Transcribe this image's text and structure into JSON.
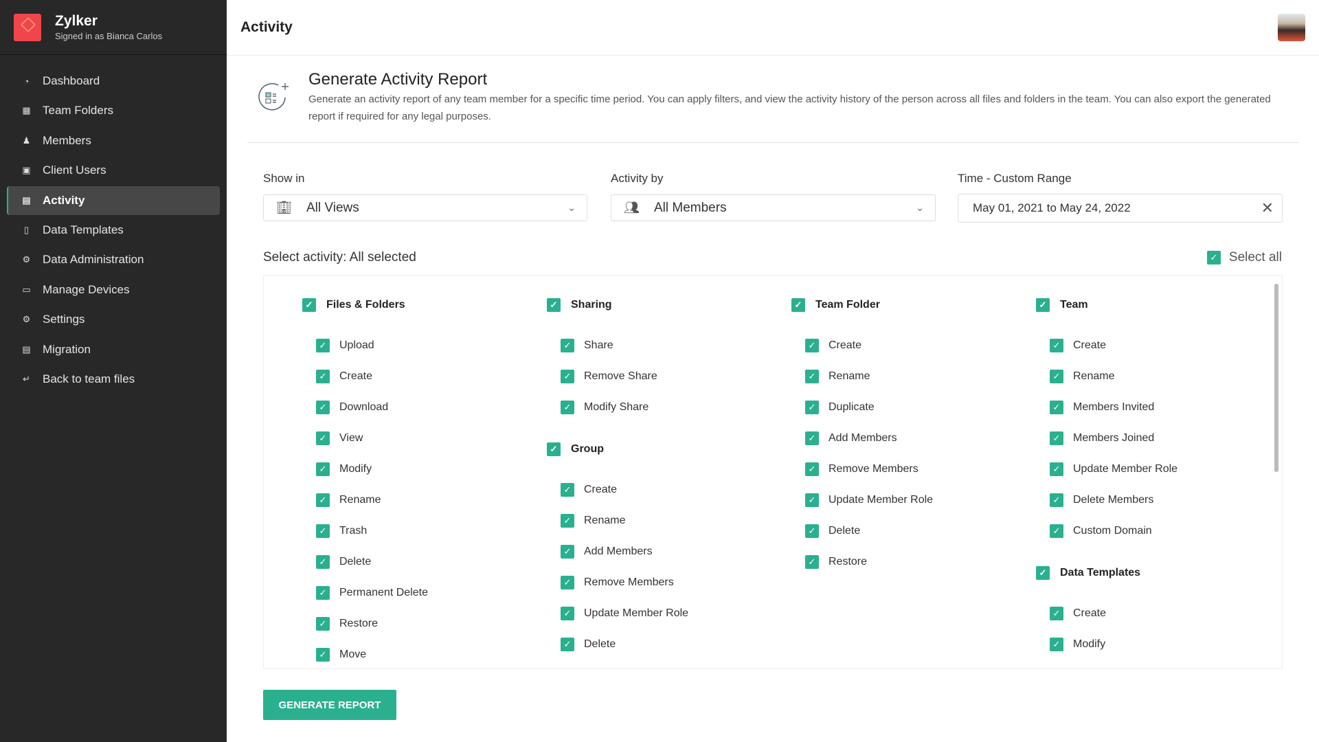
{
  "brand": {
    "name": "Zylker",
    "signed_in": "Signed in as Bianca Carlos"
  },
  "sidebar": {
    "items": [
      {
        "label": "Dashboard",
        "icon": "gauge-icon"
      },
      {
        "label": "Team Folders",
        "icon": "team-folder-icon"
      },
      {
        "label": "Members",
        "icon": "members-icon"
      },
      {
        "label": "Client Users",
        "icon": "client-user-icon"
      },
      {
        "label": "Activity",
        "icon": "activity-chart-icon",
        "active": true
      },
      {
        "label": "Data Templates",
        "icon": "clipboard-icon"
      },
      {
        "label": "Data Administration",
        "icon": "data-admin-icon"
      },
      {
        "label": "Manage Devices",
        "icon": "devices-icon"
      },
      {
        "label": "Settings",
        "icon": "settings-icon"
      },
      {
        "label": "Migration",
        "icon": "migration-icon"
      },
      {
        "label": "Back to team files",
        "icon": "back-arrow-icon"
      }
    ]
  },
  "header": {
    "title": "Activity"
  },
  "report": {
    "title": "Generate Activity Report",
    "description": "Generate an activity report of any team member for a specific time period. You can apply filters, and view the activity history of the person across all files and folders in the team. You can also export the generated report if required for any legal purposes."
  },
  "filters": {
    "show_in": {
      "label": "Show in",
      "value": "All Views"
    },
    "activity_by": {
      "label": "Activity by",
      "value": "All Members"
    },
    "time": {
      "label": "Time - Custom Range",
      "value": "May 01, 2021 to May 24, 2022"
    }
  },
  "activity": {
    "summary": "Select activity: All selected",
    "select_all": "Select all",
    "accent": "#2bb08f",
    "columns": [
      [
        {
          "title": "Files & Folders",
          "items": [
            "Upload",
            "Create",
            "Download",
            "View",
            "Modify",
            "Rename",
            "Trash",
            "Delete",
            "Permanent Delete",
            "Restore",
            "Move"
          ]
        }
      ],
      [
        {
          "title": "Sharing",
          "items": [
            "Share",
            "Remove Share",
            "Modify Share"
          ]
        },
        {
          "title": "Group",
          "items": [
            "Create",
            "Rename",
            "Add Members",
            "Remove Members",
            "Update Member Role",
            "Delete"
          ]
        }
      ],
      [
        {
          "title": "Team Folder",
          "items": [
            "Create",
            "Rename",
            "Duplicate",
            "Add Members",
            "Remove Members",
            "Update Member Role",
            "Delete",
            "Restore"
          ]
        }
      ],
      [
        {
          "title": "Team",
          "items": [
            "Create",
            "Rename",
            "Members Invited",
            "Members Joined",
            "Update Member Role",
            "Delete Members",
            "Custom Domain"
          ]
        },
        {
          "title": "Data Templates",
          "items": [
            "Create",
            "Modify"
          ]
        }
      ]
    ]
  },
  "actions": {
    "generate": "GENERATE REPORT"
  }
}
